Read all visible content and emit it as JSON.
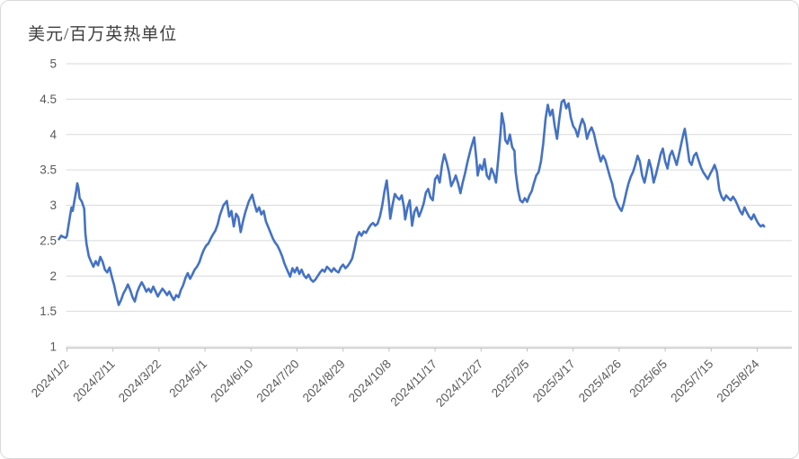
{
  "chart": {
    "title": "美元/百万英热单位",
    "colors": {
      "line": "#4472C4",
      "gridline": "#d9d9d9",
      "axis": "#bfbfbf",
      "tick_label": "#595959",
      "title": "#404040",
      "background": "#ffffff",
      "frame_border": "#d9d9d9"
    }
  },
  "chart_data": {
    "type": "line",
    "title": "美元/百万英热单位",
    "unit_label": "美元/百万英热单位",
    "legend": "none",
    "grid": "horizontal-only",
    "y_axis": {
      "min": 1,
      "max": 5,
      "tick_step": 0.5,
      "tick_labels": [
        "5",
        "4.5",
        "4",
        "3.5",
        "3",
        "2.5",
        "2",
        "1.5",
        "1"
      ]
    },
    "x_axis": {
      "type": "date",
      "first_tick": "2024/1/2",
      "tick_interval_days": 40,
      "tick_labels": [
        "2024/1/2",
        "2024/2/11",
        "2024/3/22",
        "2024/5/1",
        "2024/6/10",
        "2024/7/20",
        "2024/8/29",
        "2024/10/8",
        "2024/11/17",
        "2024/12/27",
        "2025/2/5",
        "2025/3/17",
        "2025/4/26",
        "2025/6/5",
        "2025/7/15",
        "2025/8/24"
      ],
      "label_rotation_deg": -45
    },
    "series": [
      {
        "point_format": "[days_since_2024/1/2, usd_per_mmbtu]",
        "points": [
          [
            -7,
            2.52
          ],
          [
            -5,
            2.57
          ],
          [
            -3,
            2.55
          ],
          [
            -1,
            2.54
          ],
          [
            0,
            2.57
          ],
          [
            1,
            2.68
          ],
          [
            3,
            2.88
          ],
          [
            4,
            2.97
          ],
          [
            5,
            2.92
          ],
          [
            6,
            3.02
          ],
          [
            8,
            3.2
          ],
          [
            9,
            3.31
          ],
          [
            10,
            3.24
          ],
          [
            11,
            3.1
          ],
          [
            13,
            3.05
          ],
          [
            15,
            2.95
          ],
          [
            16,
            2.6
          ],
          [
            17,
            2.45
          ],
          [
            19,
            2.28
          ],
          [
            21,
            2.2
          ],
          [
            23,
            2.13
          ],
          [
            25,
            2.21
          ],
          [
            27,
            2.15
          ],
          [
            29,
            2.27
          ],
          [
            31,
            2.2
          ],
          [
            33,
            2.09
          ],
          [
            35,
            2.05
          ],
          [
            37,
            2.12
          ],
          [
            39,
            1.99
          ],
          [
            41,
            1.87
          ],
          [
            43,
            1.72
          ],
          [
            45,
            1.59
          ],
          [
            47,
            1.66
          ],
          [
            49,
            1.75
          ],
          [
            51,
            1.81
          ],
          [
            53,
            1.88
          ],
          [
            55,
            1.8
          ],
          [
            57,
            1.7
          ],
          [
            59,
            1.64
          ],
          [
            61,
            1.77
          ],
          [
            63,
            1.85
          ],
          [
            65,
            1.91
          ],
          [
            67,
            1.85
          ],
          [
            69,
            1.78
          ],
          [
            71,
            1.82
          ],
          [
            73,
            1.77
          ],
          [
            75,
            1.85
          ],
          [
            77,
            1.78
          ],
          [
            79,
            1.71
          ],
          [
            81,
            1.77
          ],
          [
            83,
            1.82
          ],
          [
            85,
            1.78
          ],
          [
            87,
            1.73
          ],
          [
            89,
            1.78
          ],
          [
            91,
            1.71
          ],
          [
            93,
            1.66
          ],
          [
            95,
            1.73
          ],
          [
            97,
            1.7
          ],
          [
            99,
            1.8
          ],
          [
            101,
            1.87
          ],
          [
            103,
            1.97
          ],
          [
            105,
            2.04
          ],
          [
            107,
            1.96
          ],
          [
            109,
            2.02
          ],
          [
            111,
            2.09
          ],
          [
            113,
            2.13
          ],
          [
            115,
            2.19
          ],
          [
            117,
            2.29
          ],
          [
            119,
            2.37
          ],
          [
            121,
            2.43
          ],
          [
            123,
            2.46
          ],
          [
            125,
            2.53
          ],
          [
            127,
            2.59
          ],
          [
            129,
            2.64
          ],
          [
            131,
            2.73
          ],
          [
            133,
            2.86
          ],
          [
            136,
            3.0
          ],
          [
            139,
            3.06
          ],
          [
            141,
            2.84
          ],
          [
            143,
            2.92
          ],
          [
            145,
            2.7
          ],
          [
            147,
            2.88
          ],
          [
            149,
            2.83
          ],
          [
            151,
            2.62
          ],
          [
            153,
            2.77
          ],
          [
            155,
            2.9
          ],
          [
            158,
            3.05
          ],
          [
            161,
            3.15
          ],
          [
            163,
            3.02
          ],
          [
            165,
            2.91
          ],
          [
            167,
            2.97
          ],
          [
            169,
            2.87
          ],
          [
            171,
            2.92
          ],
          [
            173,
            2.77
          ],
          [
            175,
            2.69
          ],
          [
            177,
            2.61
          ],
          [
            179,
            2.53
          ],
          [
            181,
            2.47
          ],
          [
            183,
            2.43
          ],
          [
            185,
            2.36
          ],
          [
            187,
            2.28
          ],
          [
            189,
            2.18
          ],
          [
            191,
            2.1
          ],
          [
            194,
            1.99
          ],
          [
            196,
            2.11
          ],
          [
            198,
            2.05
          ],
          [
            200,
            2.12
          ],
          [
            202,
            2.03
          ],
          [
            204,
            2.09
          ],
          [
            206,
            2.01
          ],
          [
            208,
            1.97
          ],
          [
            210,
            2.02
          ],
          [
            212,
            1.95
          ],
          [
            214,
            1.92
          ],
          [
            216,
            1.95
          ],
          [
            218,
            2.0
          ],
          [
            220,
            2.05
          ],
          [
            222,
            2.09
          ],
          [
            224,
            2.06
          ],
          [
            226,
            2.13
          ],
          [
            228,
            2.1
          ],
          [
            230,
            2.06
          ],
          [
            232,
            2.11
          ],
          [
            234,
            2.07
          ],
          [
            236,
            2.05
          ],
          [
            238,
            2.12
          ],
          [
            240,
            2.16
          ],
          [
            242,
            2.11
          ],
          [
            244,
            2.14
          ],
          [
            246,
            2.19
          ],
          [
            248,
            2.25
          ],
          [
            250,
            2.39
          ],
          [
            252,
            2.55
          ],
          [
            254,
            2.62
          ],
          [
            256,
            2.57
          ],
          [
            258,
            2.63
          ],
          [
            260,
            2.61
          ],
          [
            262,
            2.67
          ],
          [
            264,
            2.72
          ],
          [
            266,
            2.75
          ],
          [
            268,
            2.71
          ],
          [
            270,
            2.74
          ],
          [
            272,
            2.84
          ],
          [
            274,
            2.99
          ],
          [
            276,
            3.2
          ],
          [
            278,
            3.35
          ],
          [
            280,
            3.02
          ],
          [
            281,
            2.81
          ],
          [
            283,
            3.0
          ],
          [
            285,
            3.16
          ],
          [
            287,
            3.11
          ],
          [
            289,
            3.08
          ],
          [
            291,
            3.14
          ],
          [
            293,
            2.97
          ],
          [
            294,
            2.8
          ],
          [
            296,
            2.97
          ],
          [
            298,
            3.07
          ],
          [
            300,
            2.71
          ],
          [
            302,
            2.91
          ],
          [
            304,
            2.97
          ],
          [
            306,
            2.84
          ],
          [
            308,
            2.92
          ],
          [
            310,
            3.02
          ],
          [
            312,
            3.18
          ],
          [
            314,
            3.23
          ],
          [
            316,
            3.11
          ],
          [
            318,
            3.07
          ],
          [
            320,
            3.37
          ],
          [
            322,
            3.42
          ],
          [
            324,
            3.32
          ],
          [
            326,
            3.57
          ],
          [
            328,
            3.72
          ],
          [
            330,
            3.61
          ],
          [
            332,
            3.47
          ],
          [
            334,
            3.27
          ],
          [
            336,
            3.34
          ],
          [
            338,
            3.42
          ],
          [
            340,
            3.31
          ],
          [
            342,
            3.17
          ],
          [
            344,
            3.32
          ],
          [
            346,
            3.45
          ],
          [
            348,
            3.6
          ],
          [
            351,
            3.8
          ],
          [
            354,
            3.96
          ],
          [
            356,
            3.63
          ],
          [
            357,
            3.42
          ],
          [
            359,
            3.57
          ],
          [
            361,
            3.5
          ],
          [
            363,
            3.65
          ],
          [
            365,
            3.42
          ],
          [
            367,
            3.37
          ],
          [
            369,
            3.52
          ],
          [
            371,
            3.44
          ],
          [
            373,
            3.32
          ],
          [
            375,
            3.67
          ],
          [
            377,
            4.05
          ],
          [
            378,
            4.3
          ],
          [
            380,
            4.13
          ],
          [
            381,
            3.92
          ],
          [
            383,
            3.87
          ],
          [
            385,
            4.0
          ],
          [
            387,
            3.82
          ],
          [
            389,
            3.77
          ],
          [
            390,
            3.47
          ],
          [
            392,
            3.22
          ],
          [
            394,
            3.07
          ],
          [
            396,
            3.04
          ],
          [
            398,
            3.1
          ],
          [
            400,
            3.05
          ],
          [
            402,
            3.14
          ],
          [
            404,
            3.2
          ],
          [
            406,
            3.32
          ],
          [
            408,
            3.42
          ],
          [
            410,
            3.47
          ],
          [
            412,
            3.62
          ],
          [
            414,
            3.87
          ],
          [
            416,
            4.22
          ],
          [
            418,
            4.42
          ],
          [
            420,
            4.27
          ],
          [
            422,
            4.35
          ],
          [
            424,
            4.12
          ],
          [
            426,
            3.94
          ],
          [
            428,
            4.22
          ],
          [
            430,
            4.46
          ],
          [
            432,
            4.49
          ],
          [
            434,
            4.37
          ],
          [
            436,
            4.44
          ],
          [
            438,
            4.24
          ],
          [
            440,
            4.12
          ],
          [
            442,
            4.07
          ],
          [
            444,
            3.97
          ],
          [
            446,
            4.12
          ],
          [
            448,
            4.22
          ],
          [
            450,
            4.14
          ],
          [
            452,
            3.94
          ],
          [
            454,
            4.04
          ],
          [
            456,
            4.1
          ],
          [
            458,
            4.02
          ],
          [
            460,
            3.87
          ],
          [
            462,
            3.74
          ],
          [
            464,
            3.62
          ],
          [
            466,
            3.7
          ],
          [
            468,
            3.64
          ],
          [
            470,
            3.52
          ],
          [
            472,
            3.4
          ],
          [
            474,
            3.3
          ],
          [
            476,
            3.12
          ],
          [
            478,
            3.04
          ],
          [
            480,
            2.97
          ],
          [
            482,
            2.92
          ],
          [
            484,
            3.02
          ],
          [
            486,
            3.17
          ],
          [
            488,
            3.3
          ],
          [
            490,
            3.4
          ],
          [
            492,
            3.47
          ],
          [
            494,
            3.57
          ],
          [
            496,
            3.7
          ],
          [
            498,
            3.62
          ],
          [
            500,
            3.42
          ],
          [
            502,
            3.32
          ],
          [
            504,
            3.47
          ],
          [
            506,
            3.64
          ],
          [
            508,
            3.52
          ],
          [
            510,
            3.32
          ],
          [
            512,
            3.44
          ],
          [
            514,
            3.57
          ],
          [
            516,
            3.72
          ],
          [
            518,
            3.8
          ],
          [
            520,
            3.62
          ],
          [
            522,
            3.52
          ],
          [
            524,
            3.7
          ],
          [
            526,
            3.77
          ],
          [
            528,
            3.67
          ],
          [
            530,
            3.57
          ],
          [
            532,
            3.72
          ],
          [
            534,
            3.87
          ],
          [
            536,
            4.02
          ],
          [
            537,
            4.08
          ],
          [
            539,
            3.87
          ],
          [
            541,
            3.62
          ],
          [
            543,
            3.57
          ],
          [
            545,
            3.7
          ],
          [
            547,
            3.74
          ],
          [
            549,
            3.64
          ],
          [
            551,
            3.54
          ],
          [
            553,
            3.47
          ],
          [
            555,
            3.42
          ],
          [
            557,
            3.37
          ],
          [
            559,
            3.44
          ],
          [
            561,
            3.5
          ],
          [
            563,
            3.57
          ],
          [
            565,
            3.47
          ],
          [
            567,
            3.22
          ],
          [
            569,
            3.12
          ],
          [
            571,
            3.07
          ],
          [
            573,
            3.14
          ],
          [
            575,
            3.1
          ],
          [
            577,
            3.07
          ],
          [
            579,
            3.12
          ],
          [
            581,
            3.07
          ],
          [
            583,
            3.0
          ],
          [
            585,
            2.92
          ],
          [
            587,
            2.87
          ],
          [
            589,
            2.97
          ],
          [
            591,
            2.9
          ],
          [
            593,
            2.84
          ],
          [
            595,
            2.8
          ],
          [
            597,
            2.87
          ],
          [
            599,
            2.8
          ],
          [
            601,
            2.74
          ],
          [
            603,
            2.7
          ],
          [
            605,
            2.72
          ],
          [
            606,
            2.7
          ]
        ]
      }
    ]
  }
}
